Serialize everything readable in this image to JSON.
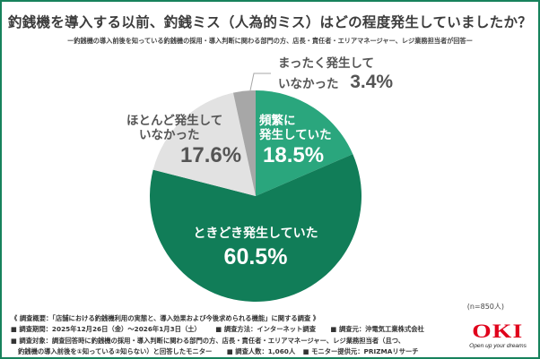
{
  "header": {
    "title": "釣銭機を導入する以前、釣銭ミス（人為的ミス）はどの程度発生していましたか？",
    "subtitle": "ー釣銭機の導入前後を知っている釣銭機の採用・導入判断に関わる部門の方、店長・責任者・エリアマネージャー、レジ業務担当者が回答ー"
  },
  "colors": {
    "frame": "#17825c",
    "frequent": "#2aa67d",
    "sometimes": "#117d58",
    "rarely": "#e2e2e2",
    "never": "#a7a7a7",
    "label_dark": "#555555",
    "label_light": "#ffffff",
    "brand_red": "#e0001b"
  },
  "chart_data": {
    "type": "pie",
    "title": "釣銭機を導入する以前、釣銭ミス（人為的ミス）はどの程度発生していましたか？",
    "start_angle": "12 o'clock",
    "direction": "clockwise",
    "sample_size": "n=850人",
    "slices": [
      {
        "label": "頻繁に発生していた",
        "value": 18.5,
        "color": "#2aa67d"
      },
      {
        "label": "ときどき発生していた",
        "value": 60.5,
        "color": "#117d58"
      },
      {
        "label": "ほとんど発生していなかった",
        "value": 17.6,
        "color": "#e2e2e2"
      },
      {
        "label": "まったく発生していなかった",
        "value": 3.4,
        "color": "#a7a7a7"
      }
    ]
  },
  "labels": {
    "frequent": {
      "line1": "頻繁に",
      "line2": "発生していた",
      "pct": "18.5%"
    },
    "sometimes": {
      "line1": "ときどき発生していた",
      "pct": "60.5%"
    },
    "rarely": {
      "line1": "ほとんど発生して",
      "line2": "いなかった",
      "pct": "17.6%"
    },
    "never": {
      "line1": "まったく発生して",
      "line2": "いなかった",
      "pct": "3.4%"
    }
  },
  "note": {
    "n": "(n=850人)"
  },
  "footer": {
    "overview": "《 調査概要：「店舗における釣銭機利用の実態と、導入効果および今後求められる機能」に関する調査 》",
    "period": "■ 調査期間：2025年12月26日（金）～2026年1月3日（土）",
    "method": "■ 調査方法：インターネット調査",
    "source": "■ 調査元：沖電気工業株式会社",
    "target1": "■ 調査対象：調査回答時に釣銭機の採用・導入判断に関わる部門の方、店長・責任者・エリアマネージャー、レジ業務担当者（且つ、",
    "target2": "釣銭機の導入前後を①知っている②知らない）と回答したモニター",
    "count": "■ 調査人数：1,060人",
    "provider": "■ モニター提供元：PRIZMAリサーチ"
  },
  "logo": {
    "mark": "OKI",
    "tagline": "Open up your dreams"
  }
}
